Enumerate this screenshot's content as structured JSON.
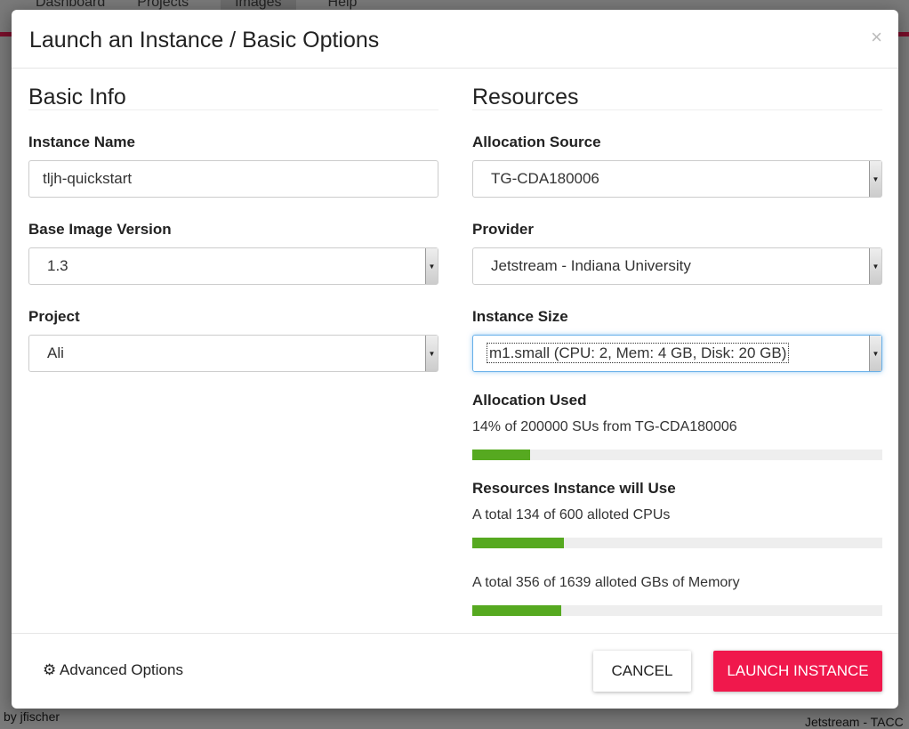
{
  "background": {
    "nav": [
      "Dashboard",
      "Projects",
      "Images",
      "Help"
    ],
    "author": "by jfischer",
    "provider": "Jetstream - TACC"
  },
  "modal": {
    "title": "Launch an Instance / Basic Options",
    "close": "×"
  },
  "basic_info": {
    "heading": "Basic Info",
    "instance_name": {
      "label": "Instance Name",
      "value": "tljh-quickstart"
    },
    "base_image_version": {
      "label": "Base Image Version",
      "value": "1.3"
    },
    "project": {
      "label": "Project",
      "value": "Ali"
    }
  },
  "resources": {
    "heading": "Resources",
    "allocation_source": {
      "label": "Allocation Source",
      "value": "TG-CDA180006"
    },
    "provider": {
      "label": "Provider",
      "value": "Jetstream - Indiana University"
    },
    "instance_size": {
      "label": "Instance Size",
      "value": "m1.small (CPU: 2, Mem: 4 GB, Disk: 20 GB)"
    },
    "allocation_used": {
      "label": "Allocation Used",
      "text": "14% of 200000 SUs from TG-CDA180006",
      "percent": 14
    },
    "will_use_label": "Resources Instance will Use",
    "cpus": {
      "text": "A total 134 of 600 alloted CPUs",
      "percent": 22.3
    },
    "memory": {
      "text": "A total 356 of 1639 alloted GBs of Memory",
      "percent": 21.7
    }
  },
  "footer": {
    "advanced": "Advanced Options",
    "cancel": "CANCEL",
    "launch": "LAUNCH INSTANCE"
  },
  "colors": {
    "accent": "#f0184c",
    "progress": "#56a920"
  }
}
